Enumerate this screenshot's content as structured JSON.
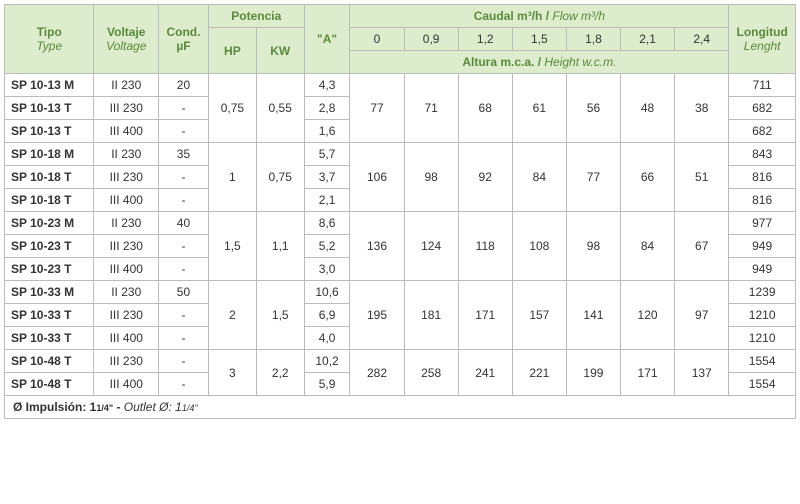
{
  "headers": {
    "tipo_es": "Tipo",
    "tipo_en": "Type",
    "volt_es": "Voltaje",
    "volt_en": "Voltage",
    "cond": "Cond. µF",
    "potencia": "Potencia",
    "hp": "HP",
    "kw": "KW",
    "a": "\"A\"",
    "flow_es": "Caudal m³/h",
    "flow_en": "Flow m³/h",
    "alt_es": "Altura  m.c.a.",
    "alt_en": "Height w.c.m.",
    "len_es": "Longitud",
    "len_en": "Lenght"
  },
  "flow_headers": [
    "0",
    "0,9",
    "1,2",
    "1,5",
    "1,8",
    "2,1",
    "2,4"
  ],
  "groups": [
    {
      "hp": "0,75",
      "kw": "0,55",
      "heights": [
        "77",
        "71",
        "68",
        "61",
        "56",
        "48",
        "38"
      ],
      "rows": [
        {
          "tipo": "SP 10-13 M",
          "volt": "II 230",
          "cond": "20",
          "a": "4,3",
          "len": "711"
        },
        {
          "tipo": "SP 10-13 T",
          "volt": "III 230",
          "cond": "-",
          "a": "2,8",
          "len": "682"
        },
        {
          "tipo": "SP 10-13 T",
          "volt": "III 400",
          "cond": "-",
          "a": "1,6",
          "len": "682"
        }
      ]
    },
    {
      "hp": "1",
      "kw": "0,75",
      "heights": [
        "106",
        "98",
        "92",
        "84",
        "77",
        "66",
        "51"
      ],
      "rows": [
        {
          "tipo": "SP 10-18 M",
          "volt": "II 230",
          "cond": "35",
          "a": "5,7",
          "len": "843"
        },
        {
          "tipo": "SP 10-18 T",
          "volt": "III 230",
          "cond": "-",
          "a": "3,7",
          "len": "816"
        },
        {
          "tipo": "SP 10-18 T",
          "volt": "III 400",
          "cond": "-",
          "a": "2,1",
          "len": "816"
        }
      ]
    },
    {
      "hp": "1,5",
      "kw": "1,1",
      "heights": [
        "136",
        "124",
        "118",
        "108",
        "98",
        "84",
        "67"
      ],
      "rows": [
        {
          "tipo": "SP 10-23 M",
          "volt": "II 230",
          "cond": "40",
          "a": "8,6",
          "len": "977"
        },
        {
          "tipo": "SP 10-23 T",
          "volt": "III 230",
          "cond": "-",
          "a": "5,2",
          "len": "949"
        },
        {
          "tipo": "SP 10-23 T",
          "volt": "III 400",
          "cond": "-",
          "a": "3,0",
          "len": "949"
        }
      ]
    },
    {
      "hp": "2",
      "kw": "1,5",
      "heights": [
        "195",
        "181",
        "171",
        "157",
        "141",
        "120",
        "97"
      ],
      "rows": [
        {
          "tipo": "SP 10-33 M",
          "volt": "II 230",
          "cond": "50",
          "a": "10,6",
          "len": "1239"
        },
        {
          "tipo": "SP 10-33 T",
          "volt": "III 230",
          "cond": "-",
          "a": "6,9",
          "len": "1210"
        },
        {
          "tipo": "SP 10-33 T",
          "volt": "III 400",
          "cond": "-",
          "a": "4,0",
          "len": "1210"
        }
      ]
    },
    {
      "hp": "3",
      "kw": "2,2",
      "heights": [
        "282",
        "258",
        "241",
        "221",
        "199",
        "171",
        "137"
      ],
      "rows": [
        {
          "tipo": "SP 10-48 T",
          "volt": "III 230",
          "cond": "-",
          "a": "10,2",
          "len": "1554"
        },
        {
          "tipo": "SP 10-48 T",
          "volt": "III 400",
          "cond": "-",
          "a": "5,9",
          "len": "1554"
        }
      ]
    }
  ],
  "footer": {
    "es": "Ø Impulsión: 1",
    "frac": "1/4\"",
    "sep": " - ",
    "en": "Outlet Ø: 1"
  },
  "colors": {
    "header_bg": "#dceccd",
    "header_text": "#5a8a3a",
    "border": "#bbbbbb"
  }
}
